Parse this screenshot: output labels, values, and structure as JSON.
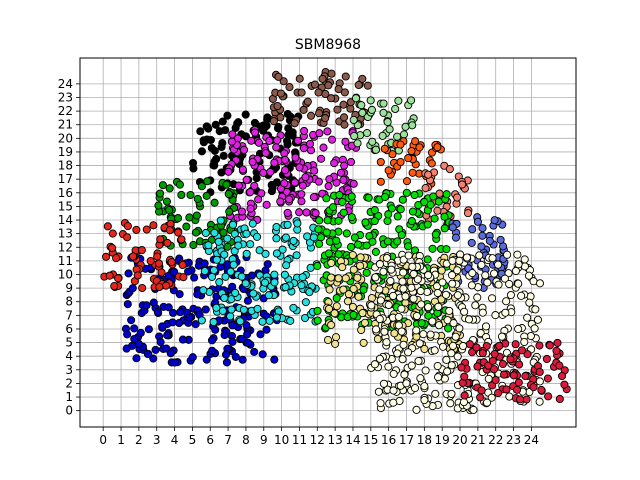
{
  "chart_data": {
    "type": "scatter",
    "title": "SBM8968",
    "xlabel": "",
    "ylabel": "",
    "xlim": [
      -1.3,
      26.5
    ],
    "ylim": [
      -1.2,
      25.9
    ],
    "xticks": [
      0,
      1,
      2,
      3,
      4,
      5,
      6,
      7,
      8,
      9,
      10,
      11,
      12,
      13,
      14,
      15,
      16,
      17,
      18,
      19,
      20,
      21,
      22,
      23,
      24
    ],
    "yticks": [
      0,
      1,
      2,
      3,
      4,
      5,
      6,
      7,
      8,
      9,
      10,
      11,
      12,
      13,
      14,
      15,
      16,
      17,
      18,
      19,
      20,
      21,
      22,
      23,
      24
    ],
    "grid": true,
    "marker_edge_color": "#000000",
    "clusters": [
      {
        "color": "#0000cd",
        "x_range": [
          1.2,
          9.8
        ],
        "y_range": [
          3.5,
          11.3
        ]
      },
      {
        "color": "#000000",
        "x_range": [
          5.0,
          11.0
        ],
        "y_range": [
          16.0,
          21.8
        ]
      },
      {
        "color": "#8b5a4a",
        "x_range": [
          9.5,
          15.0
        ],
        "y_range": [
          21.0,
          25.0
        ]
      },
      {
        "color": "#e020e0",
        "x_range": [
          7.0,
          14.2
        ],
        "y_range": [
          14.0,
          20.8
        ]
      },
      {
        "color": "#009b00",
        "x_range": [
          3.0,
          7.5
        ],
        "y_range": [
          12.0,
          17.0
        ]
      },
      {
        "color": "#e6261d",
        "x_range": [
          0.0,
          4.5
        ],
        "y_range": [
          9.0,
          13.8
        ]
      },
      {
        "color": "#23e1e1",
        "x_range": [
          5.5,
          12.0
        ],
        "y_range": [
          6.5,
          14.0
        ]
      },
      {
        "color": "#9de29b",
        "x_range": [
          14.0,
          17.5
        ],
        "y_range": [
          19.0,
          23.0
        ]
      },
      {
        "color": "#ff5a0f",
        "x_range": [
          15.5,
          19.0
        ],
        "y_range": [
          16.5,
          20.0
        ]
      },
      {
        "color": "#f48272",
        "x_range": [
          18.0,
          20.5
        ],
        "y_range": [
          13.5,
          18.0
        ]
      },
      {
        "color": "#00e000",
        "x_range": [
          12.0,
          19.5
        ],
        "y_range": [
          6.0,
          16.0
        ]
      },
      {
        "color": "#5a6cdd",
        "x_range": [
          19.5,
          22.5
        ],
        "y_range": [
          9.0,
          14.5
        ]
      },
      {
        "color": "#f0e28e",
        "x_range": [
          12.5,
          20.0
        ],
        "y_range": [
          4.5,
          11.5
        ]
      },
      {
        "color": "#fefde6",
        "x_range": [
          15.0,
          24.5
        ],
        "y_range": [
          0.0,
          11.5
        ]
      },
      {
        "color": "#dc1a3c",
        "x_range": [
          20.0,
          26.0
        ],
        "y_range": [
          0.7,
          5.0
        ]
      }
    ]
  }
}
